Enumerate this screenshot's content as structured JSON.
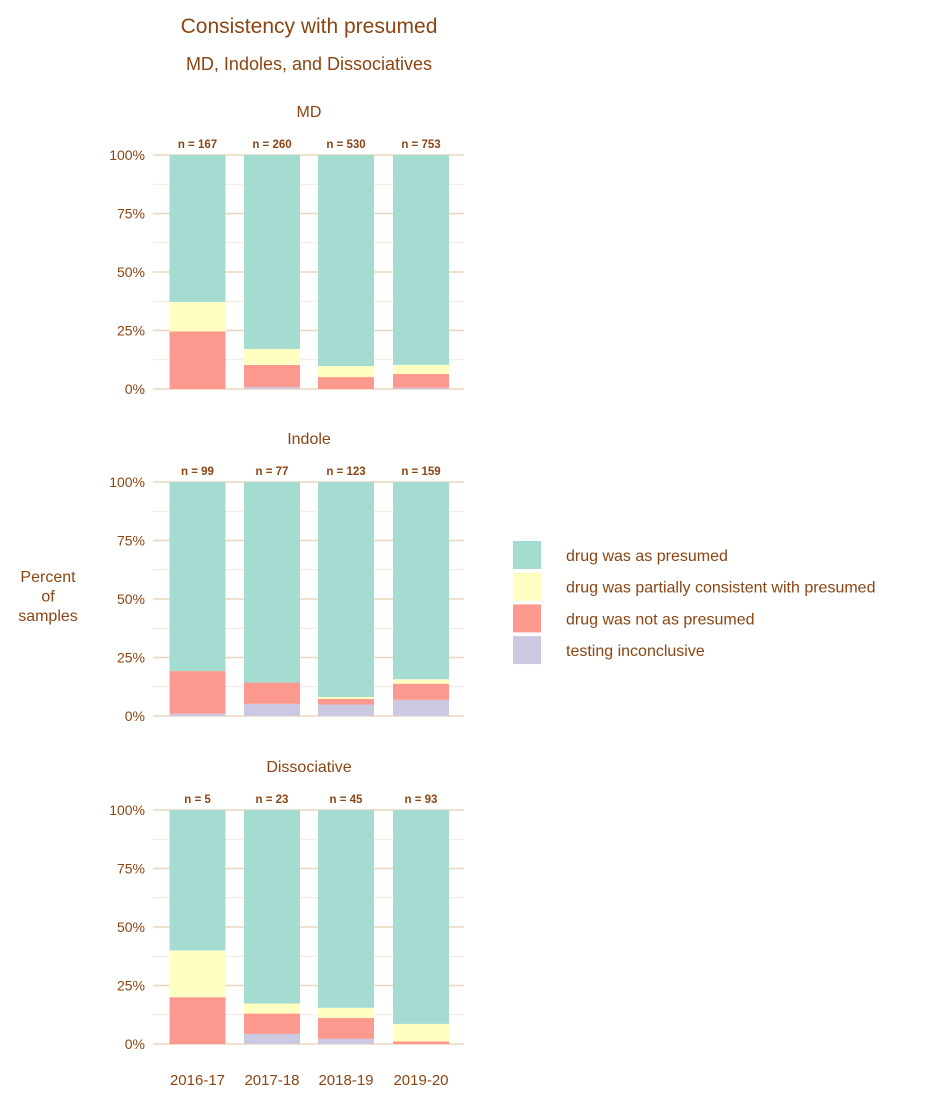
{
  "chart_data": {
    "type": "bar",
    "stacked": true,
    "title": "Consistency with presumed",
    "subtitle": "MD, Indoles, and Dissociatives",
    "ylabel": "Percent\nof\nsamples",
    "xlabel": "",
    "ylim": [
      0,
      100
    ],
    "yticks": [
      "0%",
      "25%",
      "50%",
      "75%",
      "100%"
    ],
    "grid": true,
    "legend_position": "right",
    "categories": [
      "2016-17",
      "2017-18",
      "2018-19",
      "2019-20"
    ],
    "legend": [
      {
        "key": "presumed",
        "label": "drug was as presumed",
        "color": "#8dd3c7"
      },
      {
        "key": "partial",
        "label": "drug was partially consistent with presumed",
        "color": "#ffffb3"
      },
      {
        "key": "not",
        "label": "drug was not as presumed",
        "color": "#fb8072"
      },
      {
        "key": "inconclusive",
        "label": "testing inconclusive",
        "color": "#bebada"
      }
    ],
    "panels": [
      {
        "title": "MD",
        "n_labels": [
          "n = 167",
          "n = 260",
          "n = 530",
          "n = 753"
        ],
        "series": {
          "inconclusive": [
            0,
            0.8,
            0,
            0.5
          ],
          "not": [
            24.6,
            9.5,
            5.1,
            5.9
          ],
          "partial": [
            12.6,
            6.8,
            4.7,
            3.9
          ],
          "presumed": [
            62.8,
            82.9,
            90.2,
            89.7
          ]
        }
      },
      {
        "title": "Indole",
        "n_labels": [
          "n = 99",
          "n = 77",
          "n = 123",
          "n = 159"
        ],
        "series": {
          "inconclusive": [
            1.0,
            5.2,
            4.9,
            6.9
          ],
          "not": [
            18.2,
            9.1,
            2.4,
            6.9
          ],
          "partial": [
            0,
            0,
            0.8,
            1.9
          ],
          "presumed": [
            80.8,
            85.7,
            91.9,
            84.3
          ]
        }
      },
      {
        "title": "Dissociative",
        "n_labels": [
          "n = 5",
          "n = 23",
          "n = 45",
          "n = 93"
        ],
        "series": {
          "inconclusive": [
            0,
            4.3,
            2.2,
            0
          ],
          "not": [
            20,
            8.7,
            8.9,
            1.1
          ],
          "partial": [
            20,
            4.3,
            4.4,
            7.5
          ],
          "presumed": [
            60,
            82.7,
            84.5,
            91.4
          ]
        }
      }
    ]
  }
}
